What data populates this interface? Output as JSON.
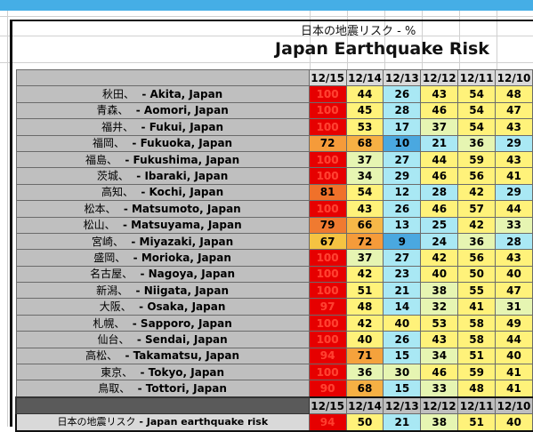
{
  "title_jp": "日本の地震リスク - %",
  "title_en": "Japan Earthquake Risk",
  "dates": [
    "12/15",
    "12/14",
    "12/13",
    "12/12",
    "12/11",
    "12/10"
  ],
  "colors": {
    "100": "#e00000",
    "97": "#e81a0a",
    "94": "#e81a0a",
    "90": "#e81a0a",
    "81": "#f0712a",
    "79": "#f07a30",
    "72": "#f59b3a",
    "71": "#f5a23c",
    "68": "#f6b044",
    "67": "#f5c342",
    "66": "#f6b848",
    "orange": "#fbc86a",
    "yellow": "#fff27a",
    "lgreen": "#e6f5b2",
    "cyan": "#a9e8f4",
    "blue": "#4aa8e0"
  },
  "rows": [
    {
      "jp": "秋田、",
      "en": "- Akita, Japan",
      "values": [
        100,
        44,
        26,
        43,
        54,
        48
      ]
    },
    {
      "jp": "青森、",
      "en": "- Aomori, Japan",
      "values": [
        100,
        45,
        28,
        46,
        54,
        47
      ]
    },
    {
      "jp": "福井、",
      "en": "- Fukui, Japan",
      "values": [
        100,
        53,
        17,
        37,
        54,
        43
      ]
    },
    {
      "jp": "福岡、",
      "en": "- Fukuoka, Japan",
      "values": [
        72,
        68,
        10,
        21,
        36,
        29
      ]
    },
    {
      "jp": "福島、",
      "en": "- Fukushima, Japan",
      "values": [
        100,
        37,
        27,
        44,
        59,
        43
      ]
    },
    {
      "jp": "茨城、",
      "en": "- Ibaraki, Japan",
      "values": [
        100,
        34,
        29,
        46,
        56,
        41
      ]
    },
    {
      "jp": "高知、",
      "en": "- Kochi, Japan",
      "values": [
        81,
        54,
        12,
        28,
        42,
        29
      ]
    },
    {
      "jp": "松本、",
      "en": "- Matsumoto, Japan",
      "values": [
        100,
        43,
        26,
        46,
        57,
        44
      ]
    },
    {
      "jp": "松山、",
      "en": "- Matsuyama, Japan",
      "values": [
        79,
        66,
        13,
        25,
        42,
        33
      ]
    },
    {
      "jp": "宮崎、",
      "en": "- Miyazaki, Japan",
      "values": [
        67,
        72,
        9,
        24,
        36,
        28
      ]
    },
    {
      "jp": "盛岡、",
      "en": "- Morioka, Japan",
      "values": [
        100,
        37,
        27,
        42,
        56,
        43
      ]
    },
    {
      "jp": "名古屋、",
      "en": "- Nagoya, Japan",
      "values": [
        100,
        42,
        23,
        40,
        50,
        40
      ]
    },
    {
      "jp": "新潟、",
      "en": "- Niigata, Japan",
      "values": [
        100,
        51,
        21,
        38,
        55,
        47
      ]
    },
    {
      "jp": "大阪、",
      "en": "- Osaka, Japan",
      "values": [
        97,
        48,
        14,
        32,
        41,
        31
      ]
    },
    {
      "jp": "札幌、",
      "en": "- Sapporo, Japan",
      "values": [
        100,
        42,
        40,
        53,
        58,
        49
      ]
    },
    {
      "jp": "仙台、",
      "en": "- Sendai, Japan",
      "values": [
        100,
        40,
        26,
        43,
        58,
        44
      ]
    },
    {
      "jp": "高松、",
      "en": "- Takamatsu, Japan",
      "values": [
        94,
        71,
        15,
        34,
        51,
        40
      ]
    },
    {
      "jp": "東京、",
      "en": "- Tokyo, Japan",
      "values": [
        100,
        36,
        30,
        46,
        59,
        41
      ]
    },
    {
      "jp": "鳥取、",
      "en": "- Tottori, Japan",
      "values": [
        90,
        68,
        15,
        33,
        48,
        41
      ]
    }
  ],
  "summary": {
    "label_jp": "日本の地震リスク",
    "label_en": "- Japan earthquake risk",
    "dates": [
      "12/15",
      "12/14",
      "12/13",
      "12/12",
      "12/11",
      "12/10"
    ],
    "values": [
      94,
      50,
      21,
      38,
      51,
      40
    ]
  }
}
